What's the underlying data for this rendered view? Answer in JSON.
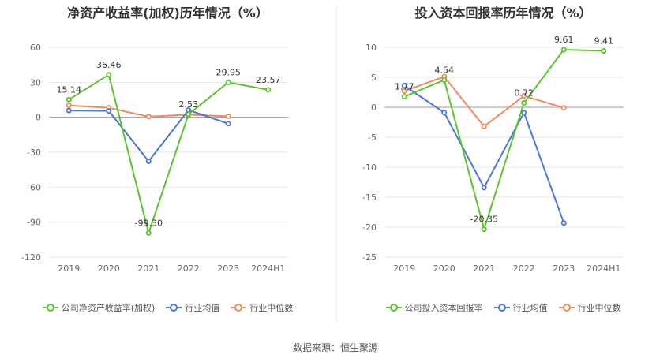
{
  "chart_data": [
    {
      "type": "line",
      "title": "净资产收益率(加权)历年情况（%）",
      "categories": [
        "2019",
        "2020",
        "2021",
        "2022",
        "2023",
        "2024H1"
      ],
      "ylim": [
        -120,
        60
      ],
      "yticks": [
        60,
        30,
        0,
        -30,
        -60,
        -90,
        -120
      ],
      "grid": true,
      "legend_position": "bottom",
      "series": [
        {
          "name": "公司净资产收益率(加权)",
          "color": "#5bc42d",
          "values": [
            15.14,
            36.46,
            -99.3,
            2.53,
            29.95,
            23.57
          ],
          "labels": [
            "15.14",
            "36.46",
            "-99.30",
            "2.53",
            "29.95",
            "23.57"
          ]
        },
        {
          "name": "行业均值",
          "color": "#4a78d8",
          "values": [
            5.8,
            5.5,
            -37.8,
            6.2,
            -5.5,
            null
          ],
          "labels": null
        },
        {
          "name": "行业中位数",
          "color": "#f08a5d",
          "values": [
            10.2,
            8.1,
            0.5,
            2.2,
            0.8,
            null
          ],
          "labels": null
        }
      ]
    },
    {
      "type": "line",
      "title": "投入资本回报率历年情况（%）",
      "categories": [
        "2019",
        "2020",
        "2021",
        "2022",
        "2023",
        "2024H1"
      ],
      "ylim": [
        -25,
        10
      ],
      "yticks": [
        10,
        5,
        0,
        -5,
        -10,
        -15,
        -20,
        -25
      ],
      "grid": true,
      "legend_position": "bottom",
      "series": [
        {
          "name": "公司投入资本回报率",
          "color": "#5bc42d",
          "values": [
            1.77,
            4.54,
            -20.35,
            0.72,
            9.61,
            9.41
          ],
          "labels": [
            "1.77",
            "4.54",
            "-20.35",
            "0.72",
            "9.61",
            "9.41"
          ]
        },
        {
          "name": "行业均值",
          "color": "#4a78d8",
          "values": [
            3.6,
            -0.9,
            -13.4,
            -0.9,
            -19.3,
            null
          ],
          "labels": null
        },
        {
          "name": "行业中位数",
          "color": "#f08a5d",
          "values": [
            2.7,
            5.1,
            -3.2,
            1.9,
            -0.1,
            null
          ],
          "labels": null
        }
      ]
    }
  ],
  "source_text": "数据来源：恒生聚源"
}
